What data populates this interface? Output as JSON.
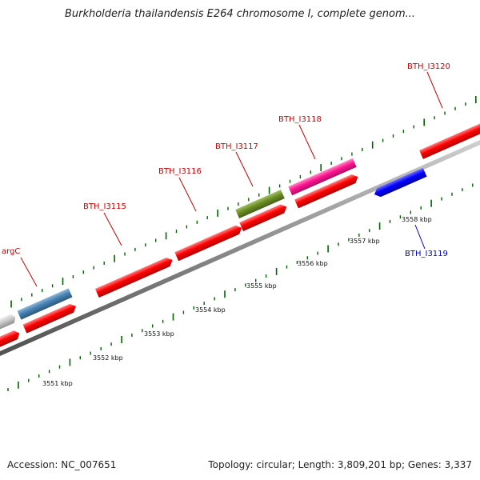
{
  "title": "Burkholderia thailandensis E264 chromosome I, complete genom...",
  "footer": {
    "accession": "Accession: NC_007651",
    "summary": "Topology: circular; Length: 3,809,201 bp; Genes: 3,337"
  },
  "colors": {
    "red_gene": "#ff0000",
    "steel_gene": "#4682b4",
    "olive_gene": "#6b8e23",
    "magenta_gene": "#ff1493",
    "blue_gene": "#0000ff",
    "grey_gene": "#c0c0c0",
    "backbone": "#808080",
    "ticks": "#006400",
    "label_red": "#cc0000",
    "label_blue": "#0000cc"
  },
  "scale_labels": [
    "3551 kbp",
    "3552 kbp",
    "3553 kbp",
    "3554 kbp",
    "3555 kbp",
    "3556 kbp",
    "3557 kbp",
    "3558 kbp"
  ],
  "gene_labels": [
    {
      "name": "argC",
      "color": "red"
    },
    {
      "name": "BTH_I3115",
      "color": "red"
    },
    {
      "name": "BTH_I3116",
      "color": "red"
    },
    {
      "name": "BTH_I3117",
      "color": "red"
    },
    {
      "name": "BTH_I3118",
      "color": "red"
    },
    {
      "name": "BTH_I3119",
      "color": "blue"
    },
    {
      "name": "BTH_I3120",
      "color": "red"
    }
  ]
}
